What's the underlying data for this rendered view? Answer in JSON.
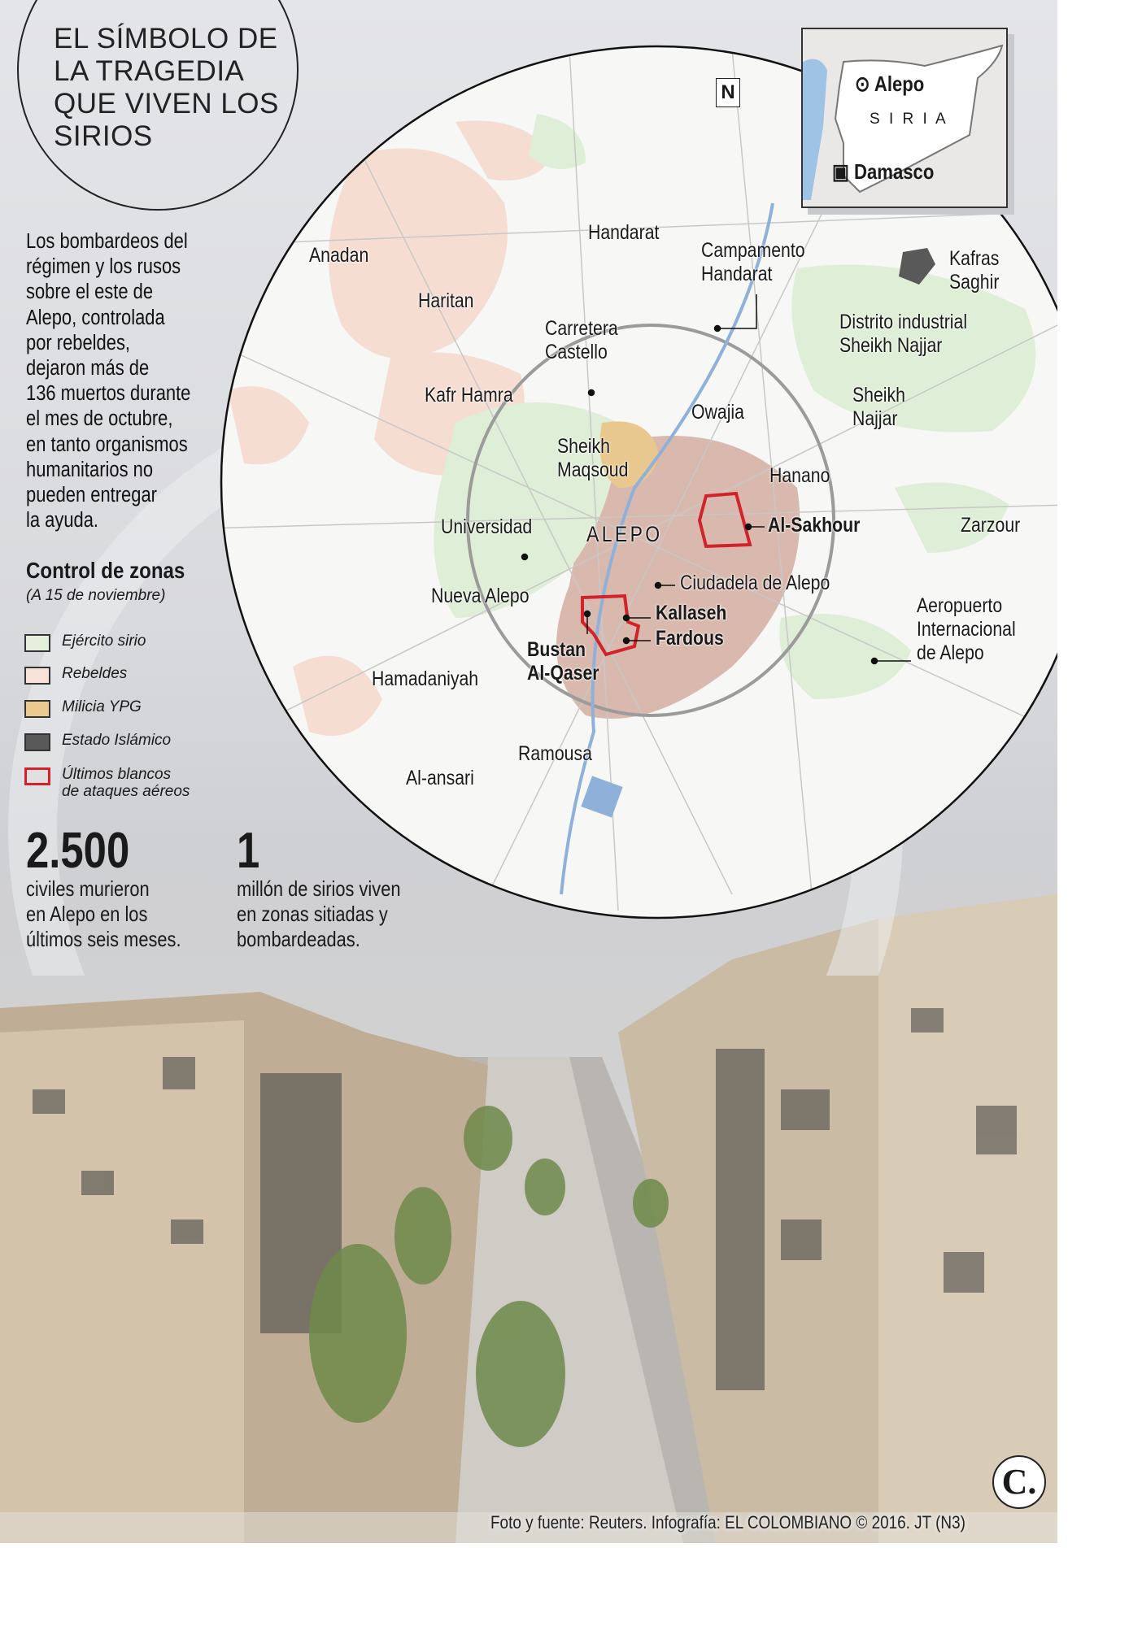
{
  "header": {
    "title": "EL SÍMBOLO DE\nLA TRAGEDIA\nQUE VIVEN LOS\nSIRIOS"
  },
  "intro": {
    "text": "Los bombardeos del\nrégimen y los rusos\nsobre el este de\nAlepo, controlada\npor rebeldes,\ndejaron más de\n136 muertos durante\nel mes de octubre,\nen tanto organismos\nhumanitarios no\npueden entregar\nla ayuda."
  },
  "legend": {
    "title": "Control de zonas",
    "subtitle": "(A 15 de noviembre)",
    "items": [
      {
        "label": "Ejército sirio",
        "color": "#e4f0dc"
      },
      {
        "label": "Rebeldes",
        "color": "#f7e1d8"
      },
      {
        "label": "Milicia YPG",
        "color": "#ecc98f"
      },
      {
        "label": "Estado Islámico",
        "color": "#595959"
      },
      {
        "label": "Últimos blancos\nde ataques aéreos",
        "color": "#d2232a"
      }
    ]
  },
  "stats": [
    {
      "value": "2.500",
      "text": "civiles murieron\nen Alepo en los\núltimos seis meses."
    },
    {
      "value": "1",
      "text": "millón de sirios viven\nen zonas sitiadas y\nbombardeadas."
    }
  ],
  "inset_map": {
    "country": "S I R I A",
    "cities": [
      "Alepo",
      "Damasco"
    ]
  },
  "map": {
    "north_icon": "north-arrow-icon",
    "north_label": "N",
    "labels": [
      {
        "text": "Anadan",
        "bold": false
      },
      {
        "text": "Handarat",
        "bold": false
      },
      {
        "text": "Campamento\nHandarat",
        "bold": false
      },
      {
        "text": "Kafras\nSaghir",
        "bold": false
      },
      {
        "text": "Haritan",
        "bold": false
      },
      {
        "text": "Carretera\nCastello",
        "bold": false
      },
      {
        "text": "Distrito industrial\nSheikh Najjar",
        "bold": false
      },
      {
        "text": "Kafr Hamra",
        "bold": false
      },
      {
        "text": "Owajia",
        "bold": false
      },
      {
        "text": "Sheikh\nNajjar",
        "bold": false
      },
      {
        "text": "Sheikh\nMaqsoud",
        "bold": false
      },
      {
        "text": "Hanano",
        "bold": false
      },
      {
        "text": "Universidad",
        "bold": false
      },
      {
        "text": "ALEPO",
        "bold": false
      },
      {
        "text": "Al-Sakhour",
        "bold": true
      },
      {
        "text": "Zarzour",
        "bold": false
      },
      {
        "text": "Ciudadela de Alepo",
        "bold": false
      },
      {
        "text": "Nueva Alepo",
        "bold": false
      },
      {
        "text": "Kallaseh",
        "bold": true
      },
      {
        "text": "Fardous",
        "bold": true
      },
      {
        "text": "Aeropuerto\nInternacional\nde Alepo",
        "bold": false
      },
      {
        "text": "Bustan\nAl-Qaser",
        "bold": true
      },
      {
        "text": "Hamadaniyah",
        "bold": false
      },
      {
        "text": "Ramousa",
        "bold": false
      },
      {
        "text": "Al-ansari",
        "bold": false
      }
    ]
  },
  "footer": {
    "credit": "Foto y fuente: Reuters. Infografía: EL COLOMBIANO © 2016. JT (N3)",
    "logo": "C."
  }
}
